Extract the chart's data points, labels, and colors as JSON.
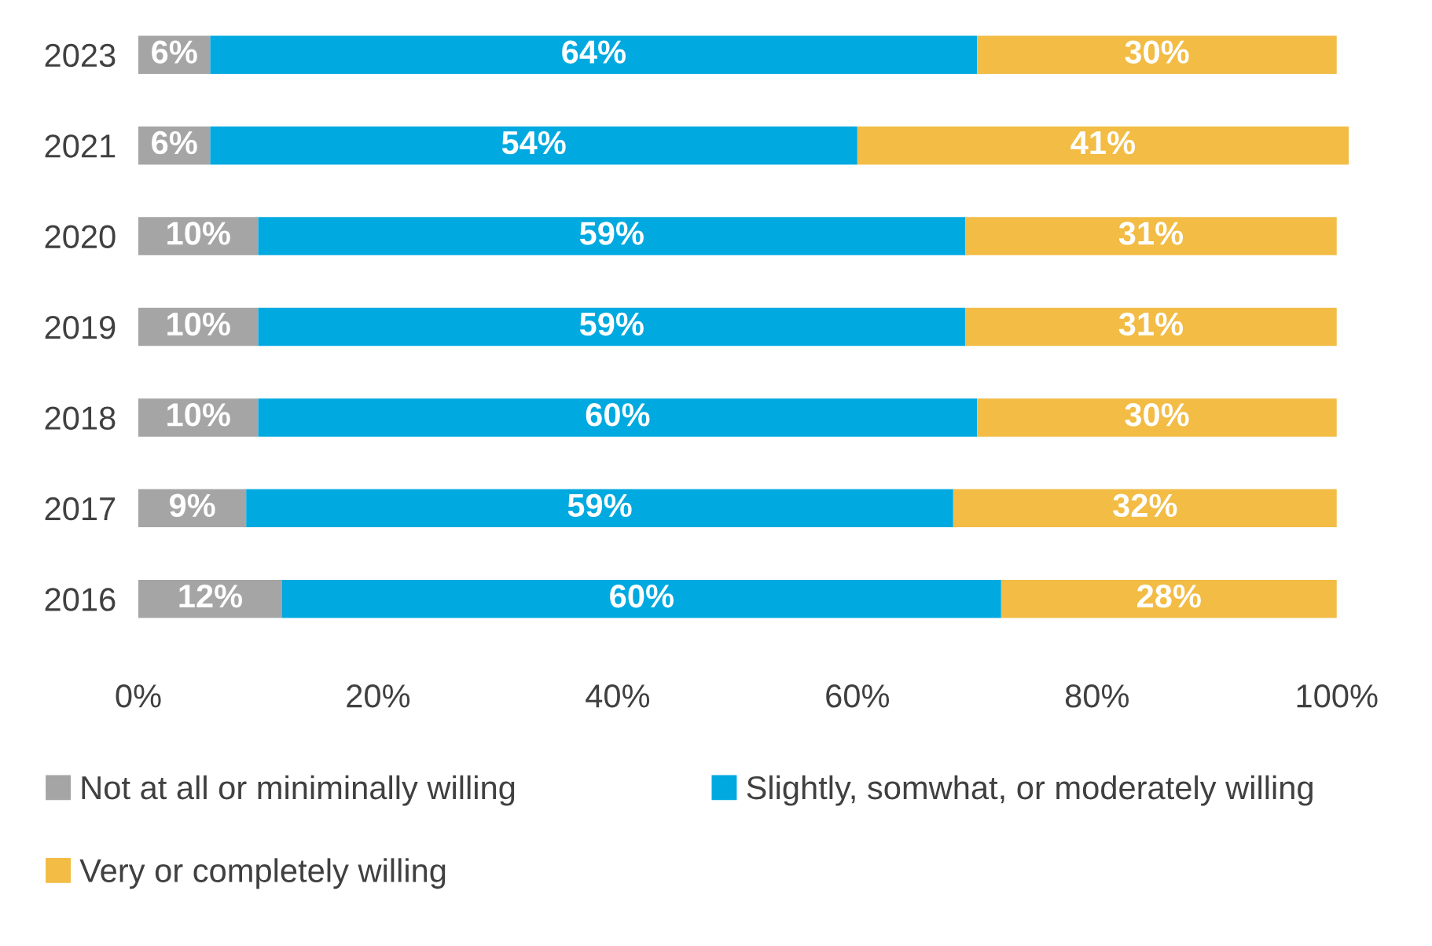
{
  "chart_data": {
    "type": "bar",
    "orientation": "horizontal",
    "stacked": true,
    "categories": [
      "2023",
      "2021",
      "2020",
      "2019",
      "2018",
      "2017",
      "2016"
    ],
    "series": [
      {
        "name": "Not at all or miniminally willing",
        "color": "#a5a5a5",
        "values": [
          6,
          6,
          10,
          10,
          10,
          9,
          12
        ],
        "value_labels": [
          "6%",
          "6%",
          "10%",
          "10%",
          "10%",
          "9%",
          "12%"
        ]
      },
      {
        "name": "Slightly, somwhat, or moderately willing",
        "color": "#00a9e0",
        "values": [
          64,
          54,
          59,
          59,
          60,
          59,
          60
        ],
        "value_labels": [
          "64%",
          "54%",
          "59%",
          "59%",
          "60%",
          "59%",
          "60%"
        ]
      },
      {
        "name": "Very or completely willing",
        "color": "#f2bc45",
        "values": [
          30,
          41,
          31,
          31,
          30,
          32,
          28
        ],
        "value_labels": [
          "30%",
          "41%",
          "31%",
          "31%",
          "30%",
          "32%",
          "28%"
        ]
      }
    ],
    "xlim": [
      0,
      101
    ],
    "xticks": [
      {
        "value": 0,
        "label": "0%"
      },
      {
        "value": 20,
        "label": "20%"
      },
      {
        "value": 40,
        "label": "40%"
      },
      {
        "value": 60,
        "label": "60%"
      },
      {
        "value": 80,
        "label": "80%"
      },
      {
        "value": 100,
        "label": "100%"
      }
    ],
    "grid": false,
    "legend": "bottom"
  }
}
